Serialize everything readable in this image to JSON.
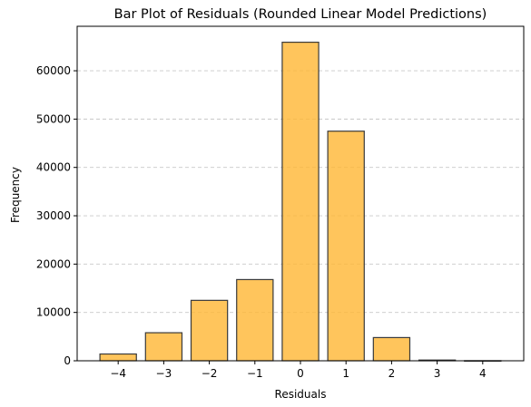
{
  "chart_data": {
    "type": "bar",
    "title": "Bar Plot of Residuals (Rounded Linear Model Predictions)",
    "xlabel": "Residuals",
    "ylabel": "Frequency",
    "categories": [
      -4,
      -3,
      -2,
      -1,
      0,
      1,
      2,
      3,
      4
    ],
    "category_labels": [
      "−4",
      "−3",
      "−2",
      "−1",
      "0",
      "1",
      "2",
      "3",
      "4"
    ],
    "values": [
      1400,
      5800,
      12500,
      16800,
      65900,
      47500,
      4800,
      150,
      20
    ],
    "xlim": [
      -4.9,
      4.9
    ],
    "ylim": [
      0,
      69200
    ],
    "yticks": [
      0,
      10000,
      20000,
      30000,
      40000,
      50000,
      60000
    ],
    "ytick_labels": [
      "0",
      "10000",
      "20000",
      "30000",
      "40000",
      "50000",
      "60000"
    ],
    "grid": "y-dashed",
    "bar_color": "#ffb733",
    "bar_edge_color": "#3a3a3a",
    "grid_color": "#c8c8c8"
  }
}
